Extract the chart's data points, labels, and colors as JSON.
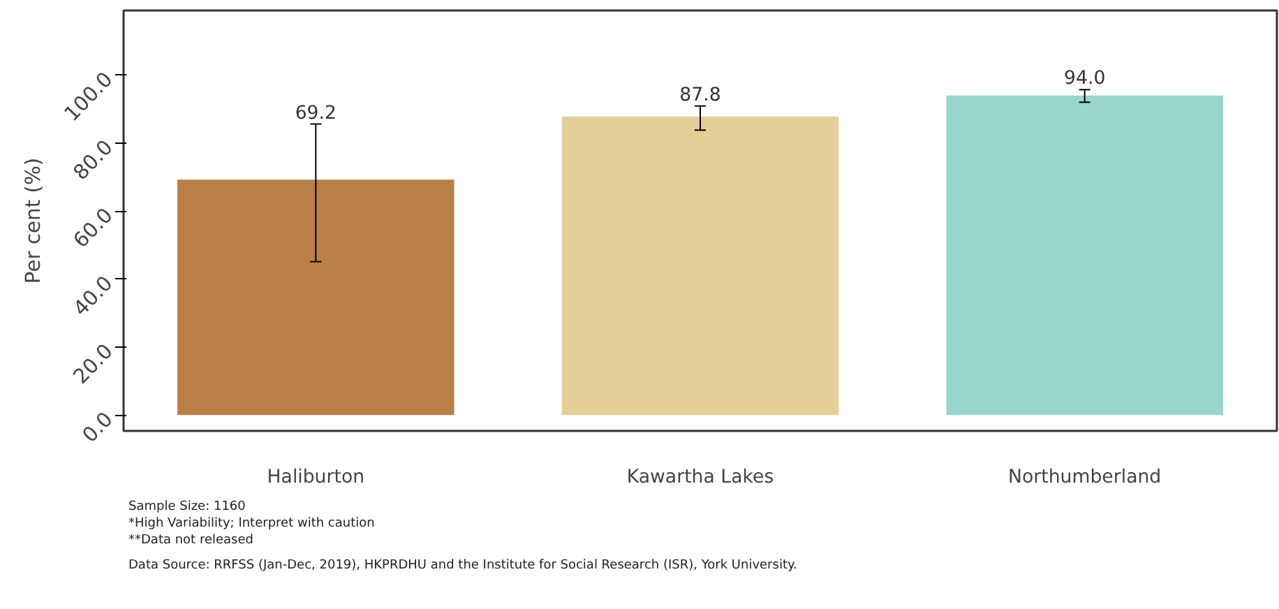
{
  "chart_data": {
    "type": "bar",
    "ylabel": "Per cent (%)",
    "categories": [
      "Haliburton",
      "Kawartha Lakes",
      "Northumberland"
    ],
    "values": [
      69.2,
      87.8,
      94.0
    ],
    "colors": [
      "#b88046",
      "#e6ce98",
      "#98d5ca"
    ],
    "errors": [
      [
        45.1,
        85.6
      ],
      [
        83.8,
        90.9
      ],
      [
        92.0,
        95.7
      ]
    ],
    "value_labels": [
      "69.2",
      "87.8",
      "94.0"
    ],
    "ylim": [
      -4.7,
      119
    ],
    "yticks": [
      {
        "value": 0,
        "label": "0.0"
      },
      {
        "value": 20,
        "label": "20.0"
      },
      {
        "value": 40,
        "label": "40.0"
      },
      {
        "value": 60,
        "label": "60.0"
      },
      {
        "value": 80,
        "label": "80.0"
      },
      {
        "value": 100,
        "label": "100.0"
      }
    ],
    "grid": false,
    "annotations": [
      "Sample Size: 1160",
      "*High Variability; Interpret with caution",
      "**Data not released",
      "Data Source: RRFSS (Jan-Dec, 2019), HKPRDHU and the Institute for Social Research (ISR), York University."
    ]
  }
}
